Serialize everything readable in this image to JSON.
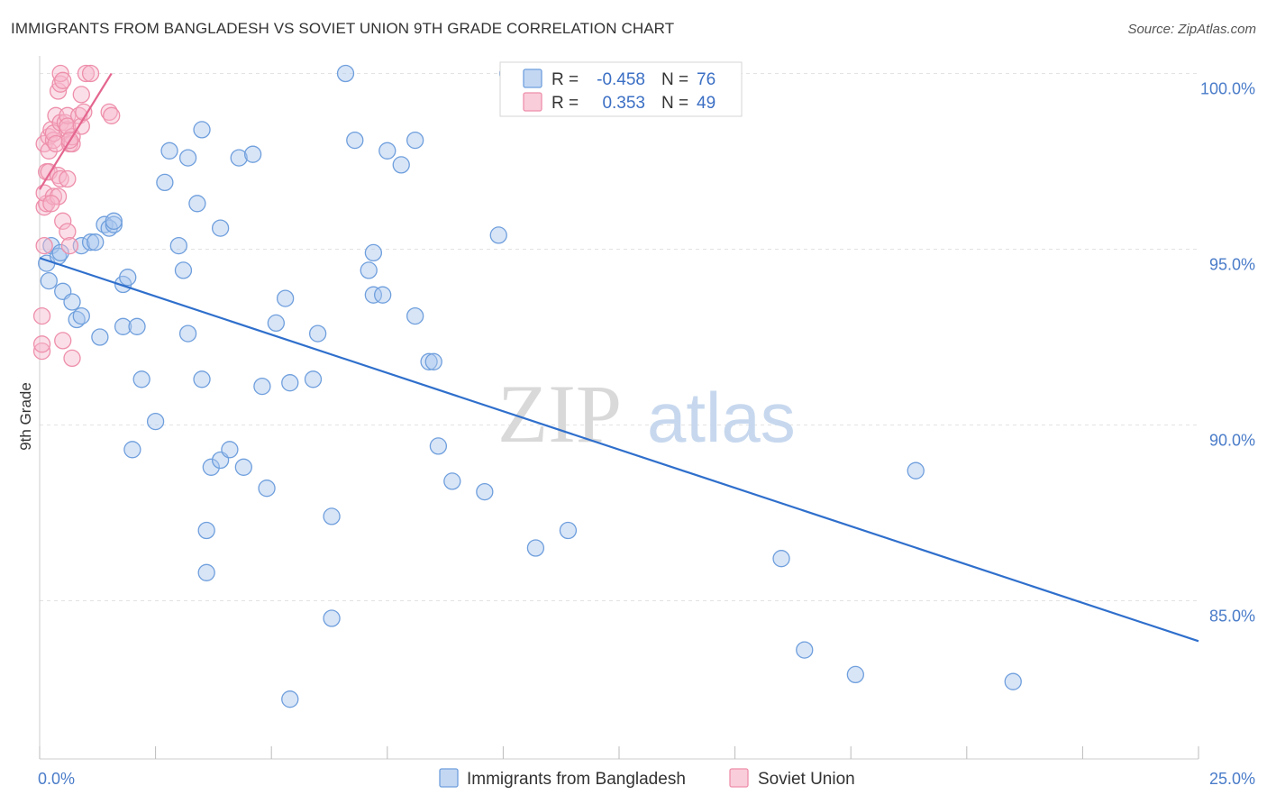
{
  "header": {
    "title": "IMMIGRANTS FROM BANGLADESH VS SOVIET UNION 9TH GRADE CORRELATION CHART",
    "source": "Source: ZipAtlas.com"
  },
  "watermark": {
    "zip": "ZIP",
    "atlas": "atlas"
  },
  "colors": {
    "blue_fill": "#a9c6ee",
    "blue_stroke": "#6f9fdd",
    "blue_line": "#2f6fcc",
    "pink_fill": "#f7b8cb",
    "pink_stroke": "#ee8fab",
    "pink_line": "#e4668f",
    "grid": "#e3e3e3",
    "axis_text": "#4a7cc9"
  },
  "legend": {
    "rows": [
      {
        "r_label": "R = ",
        "r_value": "-0.458",
        "n_label": "N = ",
        "n_value": "76"
      },
      {
        "r_label": "R = ",
        "r_value": "0.353",
        "n_label": "N = ",
        "n_value": "49"
      }
    ]
  },
  "chart_data": {
    "type": "scatter",
    "ylabel": "9th Grade",
    "x_range": [
      0,
      25
    ],
    "y_range": [
      80.5,
      100.5
    ],
    "x_tick_labels": [
      "0.0%",
      "25.0%"
    ],
    "y_ticks": [
      85,
      90,
      95,
      100
    ],
    "y_tick_labels": [
      "85.0%",
      "90.0%",
      "95.0%",
      "100.0%"
    ],
    "grid": true,
    "legend_position": "top-center",
    "series": [
      {
        "name": "Immigrants from Bangladesh",
        "trend": {
          "x": [
            0.0,
            25.0
          ],
          "y": [
            94.75,
            83.85
          ]
        },
        "points": [
          [
            0.15,
            94.6
          ],
          [
            0.2,
            94.1
          ],
          [
            0.25,
            95.1
          ],
          [
            0.4,
            94.8
          ],
          [
            0.45,
            94.9
          ],
          [
            0.5,
            93.8
          ],
          [
            0.7,
            93.5
          ],
          [
            0.8,
            93.0
          ],
          [
            0.9,
            93.1
          ],
          [
            0.9,
            95.1
          ],
          [
            1.1,
            95.2
          ],
          [
            1.2,
            95.2
          ],
          [
            1.4,
            95.7
          ],
          [
            1.5,
            95.6
          ],
          [
            1.6,
            95.7
          ],
          [
            1.6,
            95.8
          ],
          [
            1.8,
            94.0
          ],
          [
            1.9,
            94.2
          ],
          [
            1.8,
            92.8
          ],
          [
            2.1,
            92.8
          ],
          [
            1.3,
            92.5
          ],
          [
            2.0,
            89.3
          ],
          [
            2.2,
            91.3
          ],
          [
            2.5,
            90.1
          ],
          [
            2.7,
            96.9
          ],
          [
            2.8,
            97.8
          ],
          [
            3.2,
            97.6
          ],
          [
            3.4,
            96.3
          ],
          [
            3.5,
            98.4
          ],
          [
            3.0,
            95.1
          ],
          [
            3.9,
            95.6
          ],
          [
            3.1,
            94.4
          ],
          [
            3.2,
            92.6
          ],
          [
            3.5,
            91.3
          ],
          [
            3.7,
            88.8
          ],
          [
            3.6,
            87.0
          ],
          [
            3.6,
            85.8
          ],
          [
            3.9,
            89.0
          ],
          [
            4.1,
            89.3
          ],
          [
            4.3,
            97.6
          ],
          [
            4.6,
            97.7
          ],
          [
            4.4,
            88.8
          ],
          [
            4.8,
            91.1
          ],
          [
            4.9,
            88.2
          ],
          [
            5.1,
            92.9
          ],
          [
            5.3,
            93.6
          ],
          [
            5.4,
            91.2
          ],
          [
            5.9,
            91.3
          ],
          [
            5.4,
            82.2
          ],
          [
            6.0,
            92.6
          ],
          [
            6.3,
            87.4
          ],
          [
            6.3,
            84.5
          ],
          [
            6.6,
            100.0
          ],
          [
            6.8,
            98.1
          ],
          [
            7.1,
            94.4
          ],
          [
            7.2,
            94.9
          ],
          [
            7.2,
            93.7
          ],
          [
            7.4,
            93.7
          ],
          [
            7.5,
            97.8
          ],
          [
            7.8,
            97.4
          ],
          [
            8.1,
            98.1
          ],
          [
            8.1,
            93.1
          ],
          [
            8.4,
            91.8
          ],
          [
            8.5,
            91.8
          ],
          [
            8.6,
            89.4
          ],
          [
            8.9,
            88.4
          ],
          [
            9.6,
            88.1
          ],
          [
            9.9,
            95.4
          ],
          [
            10.1,
            100.0
          ],
          [
            10.7,
            86.5
          ],
          [
            11.4,
            87.0
          ],
          [
            16.0,
            86.2
          ],
          [
            16.5,
            83.6
          ],
          [
            17.6,
            82.9
          ],
          [
            18.9,
            88.7
          ],
          [
            21.0,
            82.7
          ]
        ]
      },
      {
        "name": "Soviet Union",
        "trend": {
          "x": [
            0.0,
            1.55
          ],
          "y": [
            96.7,
            100.0
          ]
        },
        "points": [
          [
            0.05,
            92.1
          ],
          [
            0.05,
            92.3
          ],
          [
            0.05,
            93.1
          ],
          [
            0.1,
            95.1
          ],
          [
            0.1,
            96.2
          ],
          [
            0.15,
            96.3
          ],
          [
            0.1,
            96.6
          ],
          [
            0.15,
            97.2
          ],
          [
            0.2,
            97.2
          ],
          [
            0.1,
            98.0
          ],
          [
            0.2,
            98.2
          ],
          [
            0.25,
            98.4
          ],
          [
            0.2,
            97.8
          ],
          [
            0.3,
            98.1
          ],
          [
            0.3,
            98.3
          ],
          [
            0.35,
            98.0
          ],
          [
            0.35,
            98.8
          ],
          [
            0.4,
            99.5
          ],
          [
            0.45,
            99.7
          ],
          [
            0.45,
            100.0
          ],
          [
            0.5,
            99.8
          ],
          [
            0.3,
            96.5
          ],
          [
            0.4,
            96.5
          ],
          [
            0.4,
            97.1
          ],
          [
            0.45,
            98.6
          ],
          [
            0.55,
            98.6
          ],
          [
            0.5,
            95.8
          ],
          [
            0.5,
            92.4
          ],
          [
            0.45,
            97.0
          ],
          [
            0.25,
            96.3
          ],
          [
            0.6,
            98.4
          ],
          [
            0.6,
            97.0
          ],
          [
            0.65,
            98.0
          ],
          [
            0.6,
            98.8
          ],
          [
            0.6,
            95.5
          ],
          [
            0.65,
            95.1
          ],
          [
            0.7,
            98.0
          ],
          [
            0.7,
            98.2
          ],
          [
            0.6,
            98.5
          ],
          [
            0.65,
            98.1
          ],
          [
            0.7,
            91.9
          ],
          [
            0.85,
            98.8
          ],
          [
            0.9,
            98.5
          ],
          [
            0.95,
            98.9
          ],
          [
            0.9,
            99.4
          ],
          [
            1.0,
            100.0
          ],
          [
            1.1,
            100.0
          ],
          [
            1.5,
            98.9
          ],
          [
            1.55,
            98.8
          ]
        ]
      }
    ]
  }
}
